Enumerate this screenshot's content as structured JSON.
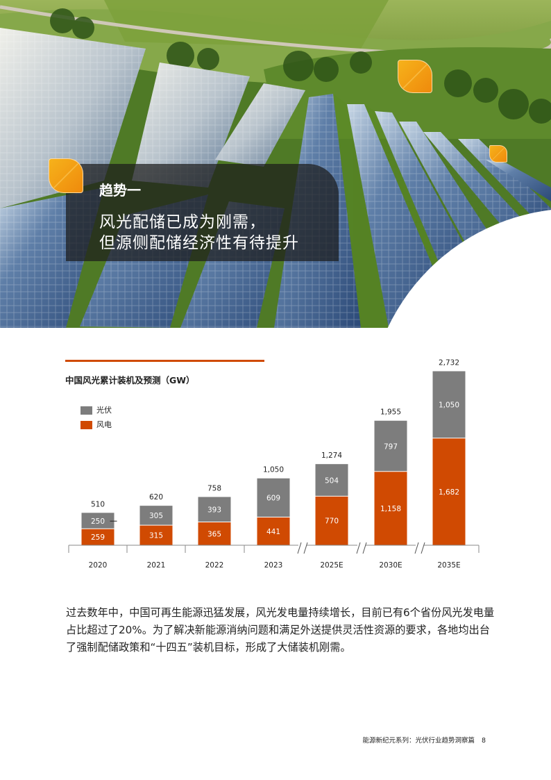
{
  "hero": {
    "trend_label": "趋势一",
    "title_line1": "风光配储已成为刚需，",
    "title_line2": "但源侧配储经济性有待提升"
  },
  "chart_data": {
    "type": "bar",
    "title": "中国风光累计装机及预测（GW）",
    "categories": [
      "2020",
      "2021",
      "2022",
      "2023",
      "2025E",
      "2030E",
      "2035E"
    ],
    "series": [
      {
        "name": "风电",
        "color": "#d04a02",
        "values": [
          259,
          315,
          365,
          441,
          770,
          1158,
          1682
        ]
      },
      {
        "name": "光伏",
        "color": "#7d7d7d",
        "values": [
          250,
          305,
          393,
          609,
          504,
          797,
          1050
        ]
      }
    ],
    "totals": [
      "510",
      "620",
      "758",
      "1,050",
      "1,274",
      "1,955",
      "2,732"
    ],
    "wind_labels": [
      "259",
      "315",
      "365",
      "441",
      "770",
      "1,158",
      "1,682"
    ],
    "pv_labels": [
      "250",
      "305",
      "393",
      "609",
      "504",
      "797",
      "1,050"
    ],
    "axis_breaks_after": [
      "2023",
      "2025E",
      "2030E"
    ],
    "legend": [
      {
        "label": "光伏",
        "color": "#7d7d7d"
      },
      {
        "label": "风电",
        "color": "#d04a02"
      }
    ],
    "stacked": true,
    "grid": false,
    "legend_position": "top-left"
  },
  "body": {
    "paragraph": "过去数年中，中国可再生能源迅猛发展，风光发电量持续增长，目前已有6个省份风光发电量占比超过了20%。为了解决新能源消纳问题和满足外送提供灵活性资源的要求，各地均出台了强制配储政策和“十四五”装机目标，形成了大储装机刚需。"
  },
  "footer": {
    "series_text": "能源新纪元系列：光伏行业趋势洞察篇",
    "page_number": "8"
  },
  "colors": {
    "accent": "#d04a02",
    "pv_gray": "#7d7d7d",
    "leaf_orange": "#f39b12"
  }
}
